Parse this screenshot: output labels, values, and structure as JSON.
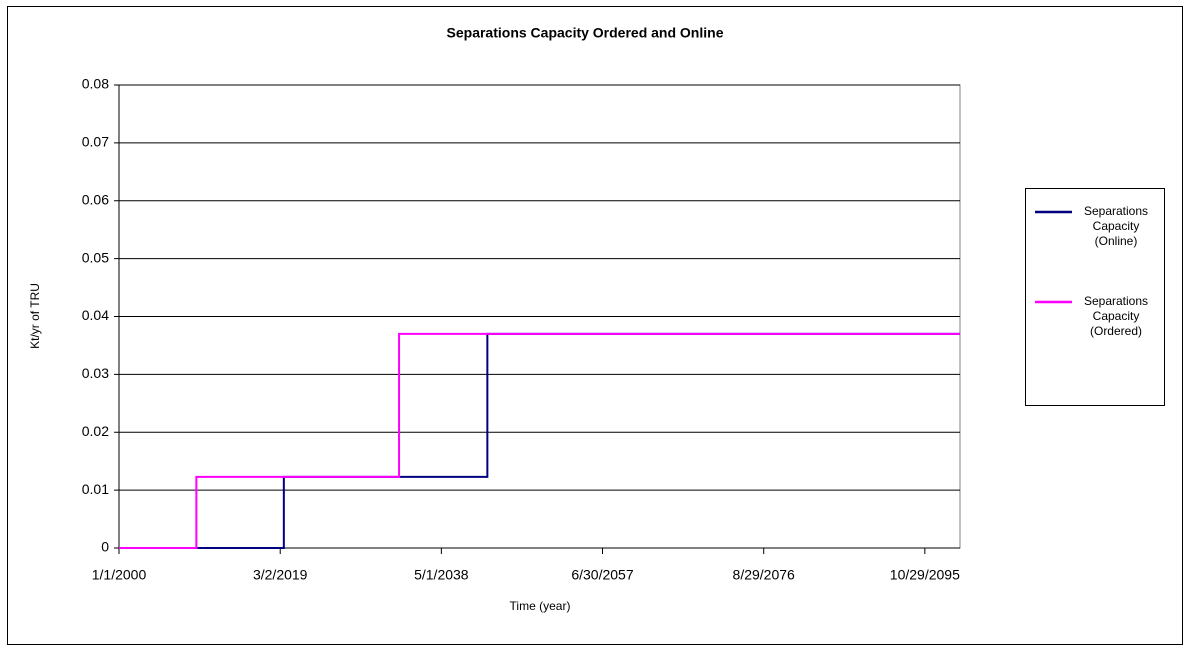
{
  "chart_data": {
    "type": "line",
    "title": "Separations Capacity Ordered and Online",
    "x_label": "Time (year)",
    "y_label": "Kt/yr of TRU",
    "xlim": [
      2000,
      2100
    ],
    "xticks": [
      {
        "value": 2000,
        "label": "1/1/2000"
      },
      {
        "value": 2019.17,
        "label": "3/2/2019"
      },
      {
        "value": 2038.33,
        "label": "5/1/2038"
      },
      {
        "value": 2057.49,
        "label": "6/30/2057"
      },
      {
        "value": 2076.66,
        "label": "8/29/2076"
      },
      {
        "value": 2095.82,
        "label": "10/29/2095"
      }
    ],
    "ylim": [
      0,
      0.08
    ],
    "yticks": [
      0,
      0.01,
      0.02,
      0.03,
      0.04,
      0.05,
      0.06,
      0.07,
      0.08
    ],
    "grid": true,
    "legend": "right",
    "series": [
      {
        "name": "Separations Capacity (Online)",
        "color": "#000080",
        "x": [
          2000,
          2019.6,
          2019.6,
          2043.8,
          2043.8,
          2100
        ],
        "values": [
          0,
          0,
          0.0123,
          0.0123,
          0.037,
          0.037
        ]
      },
      {
        "name": "Separations Capacity (Ordered)",
        "color": "#ff00ff",
        "x": [
          2000,
          2009.2,
          2009.2,
          2033.3,
          2033.3,
          2100
        ],
        "values": [
          0,
          0,
          0.0123,
          0.0123,
          0.037,
          0.037
        ]
      }
    ]
  }
}
